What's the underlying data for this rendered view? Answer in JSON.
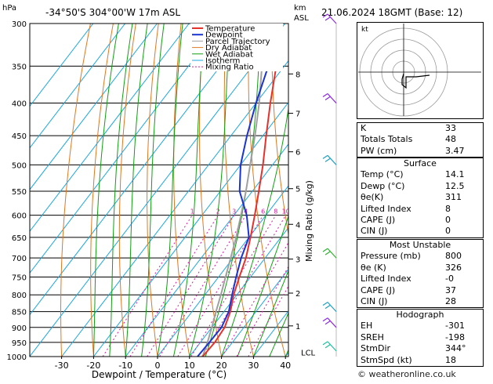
{
  "header": {
    "hpa_unit": "hPa",
    "location": "-34°50'S  304°00'W  17m  ASL",
    "km_unit": "km",
    "asl": "ASL",
    "datetime": "21.06.2024  18GMT  (Base: 12)"
  },
  "chart_data": {
    "type": "skew-t log-p",
    "xlabel": "Dewpoint / Temperature (°C)",
    "ylabel_right": "Mixing Ratio (g/kg)",
    "pressure_levels": [
      300,
      350,
      400,
      450,
      500,
      550,
      600,
      650,
      700,
      750,
      800,
      850,
      900,
      950,
      1000
    ],
    "temp_ticks": [
      -30,
      -20,
      -10,
      0,
      10,
      20,
      30,
      40
    ],
    "km_ticks": [
      {
        "km": "1",
        "p": 895
      },
      {
        "km": "2",
        "p": 795
      },
      {
        "km": "3",
        "p": 703
      },
      {
        "km": "4",
        "p": 620
      },
      {
        "km": "5",
        "p": 545
      },
      {
        "km": "6",
        "p": 477
      },
      {
        "km": "7",
        "p": 415
      },
      {
        "km": "8",
        "p": 360
      }
    ],
    "lcl_label": "LCL",
    "mixing_ratio_labels": [
      "1",
      "2",
      "3",
      "4",
      "6",
      "8",
      "10",
      "15",
      "20",
      "25"
    ],
    "legend": [
      "Temperature",
      "Dewpoint",
      "Parcel Trajectory",
      "Dry Adiabat",
      "Wet Adiabat",
      "Isotherm",
      "Mixing Ratio"
    ],
    "colors": {
      "temperature": "#e8302b",
      "dewpoint": "#1a34d4",
      "parcel": "#a0a0a0",
      "dry_adiabat": "#e07820",
      "wet_adiabat": "#10a010",
      "isotherm": "#1aa8e0",
      "mixing_ratio": "#d81ca0"
    },
    "temperature": [
      {
        "p": 1000,
        "t": 14.1
      },
      {
        "p": 950,
        "t": 14.5
      },
      {
        "p": 900,
        "t": 14.0
      },
      {
        "p": 850,
        "t": 12.0
      },
      {
        "p": 800,
        "t": 9.0
      },
      {
        "p": 750,
        "t": 6.5
      },
      {
        "p": 700,
        "t": 4.0
      },
      {
        "p": 650,
        "t": 0.5
      },
      {
        "p": 600,
        "t": -3.5
      },
      {
        "p": 550,
        "t": -8.0
      },
      {
        "p": 500,
        "t": -13.0
      },
      {
        "p": 450,
        "t": -19.0
      },
      {
        "p": 400,
        "t": -25.5
      },
      {
        "p": 350,
        "t": -32.5
      },
      {
        "p": 300,
        "t": -41.0
      }
    ],
    "dewpoint": [
      {
        "p": 1000,
        "t": 12.5
      },
      {
        "p": 950,
        "t": 12.8
      },
      {
        "p": 900,
        "t": 13.0
      },
      {
        "p": 850,
        "t": 11.5
      },
      {
        "p": 800,
        "t": 8.5
      },
      {
        "p": 750,
        "t": 5.5
      },
      {
        "p": 700,
        "t": 2.5
      },
      {
        "p": 650,
        "t": 0.0
      },
      {
        "p": 600,
        "t": -6.0
      },
      {
        "p": 550,
        "t": -14.0
      },
      {
        "p": 500,
        "t": -20.0
      },
      {
        "p": 450,
        "t": -25.0
      },
      {
        "p": 400,
        "t": -30.0
      },
      {
        "p": 350,
        "t": -35.0
      },
      {
        "p": 300,
        "t": -48.0
      }
    ],
    "parcel": [
      {
        "p": 1000,
        "t": 14.1
      },
      {
        "p": 950,
        "t": 12.2
      },
      {
        "p": 900,
        "t": 10.0
      },
      {
        "p": 850,
        "t": 7.5
      },
      {
        "p": 800,
        "t": 5.0
      },
      {
        "p": 750,
        "t": 2.2
      },
      {
        "p": 700,
        "t": -0.8
      },
      {
        "p": 650,
        "t": -4.0
      },
      {
        "p": 600,
        "t": -7.8
      },
      {
        "p": 550,
        "t": -12.0
      },
      {
        "p": 500,
        "t": -17.0
      },
      {
        "p": 450,
        "t": -22.5
      },
      {
        "p": 400,
        "t": -29.0
      },
      {
        "p": 350,
        "t": -37.0
      },
      {
        "p": 300,
        "t": -46.0
      }
    ]
  },
  "table": {
    "indices": [
      {
        "label": "K",
        "value": "33"
      },
      {
        "label": "Totals Totals",
        "value": "48"
      },
      {
        "label": "PW (cm)",
        "value": "3.47"
      }
    ],
    "surface_title": "Surface",
    "surface": [
      {
        "label": "Temp (°C)",
        "value": "14.1"
      },
      {
        "label": "Dewp (°C)",
        "value": "12.5"
      },
      {
        "label": "θe(K)",
        "value": "311"
      },
      {
        "label": "Lifted Index",
        "value": "8"
      },
      {
        "label": "CAPE (J)",
        "value": "0"
      },
      {
        "label": "CIN (J)",
        "value": "0"
      }
    ],
    "unstable_title": "Most Unstable",
    "unstable": [
      {
        "label": "Pressure (mb)",
        "value": "800"
      },
      {
        "label": "θe (K)",
        "value": "326"
      },
      {
        "label": "Lifted Index",
        "value": "-0"
      },
      {
        "label": "CAPE (J)",
        "value": "37"
      },
      {
        "label": "CIN (J)",
        "value": "28"
      }
    ],
    "hodograph_title": "Hodograph",
    "hodograph": [
      {
        "label": "EH",
        "value": "-301"
      },
      {
        "label": "SREH",
        "value": "-198"
      },
      {
        "label": "StmDir",
        "value": "344°"
      },
      {
        "label": "StmSpd (kt)",
        "value": "18"
      }
    ]
  },
  "hodograph_label": "kt",
  "copyright": "© weatheronline.co.uk"
}
